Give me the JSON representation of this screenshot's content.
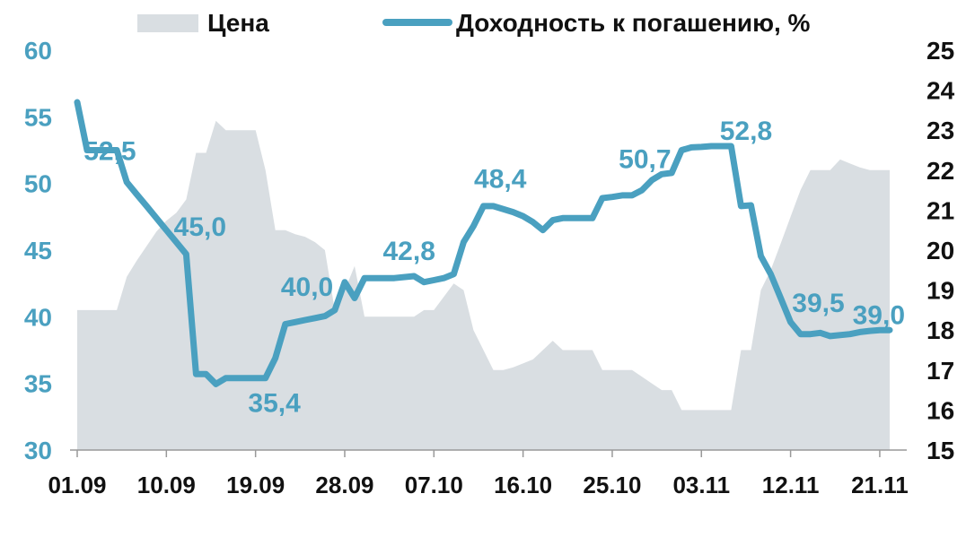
{
  "chart_data": {
    "type": "area+line",
    "legend": {
      "placement": "top",
      "items": [
        {
          "label": "Цена",
          "kind": "area",
          "color": "#d9dee2"
        },
        {
          "label": "Доходность к погашению, %",
          "kind": "line",
          "color": "#4aa0c0"
        }
      ]
    },
    "x_tick_labels": [
      "01.09",
      "10.09",
      "19.09",
      "28.09",
      "07.10",
      "16.10",
      "25.10",
      "03.11",
      "12.11",
      "21.11"
    ],
    "x_tick_positions": [
      0,
      9,
      18,
      27,
      36,
      45,
      54,
      63,
      72,
      81
    ],
    "x_range": [
      0,
      83
    ],
    "left_axis": {
      "range": [
        30,
        60
      ],
      "ticks": [
        30,
        35,
        40,
        45,
        50,
        55,
        60
      ],
      "color": "#4aa0c0"
    },
    "right_axis": {
      "range": [
        15,
        25
      ],
      "ticks": [
        15,
        16,
        17,
        18,
        19,
        20,
        21,
        22,
        23,
        24,
        25
      ],
      "color": "#111111"
    },
    "series": [
      {
        "name": "Цена",
        "type": "area",
        "axis": "left",
        "color": "#d9dee2",
        "points": [
          [
            0,
            40.5
          ],
          [
            4,
            40.5
          ],
          [
            5,
            43
          ],
          [
            6,
            44.2
          ],
          [
            7,
            45.3
          ],
          [
            8,
            46.4
          ],
          [
            9,
            47.2
          ],
          [
            10,
            47.8
          ],
          [
            11,
            48.8
          ],
          [
            12,
            52.3
          ],
          [
            13,
            52.3
          ],
          [
            14,
            54.7
          ],
          [
            15,
            54
          ],
          [
            16,
            54
          ],
          [
            18,
            54
          ],
          [
            19,
            51
          ],
          [
            20,
            46.5
          ],
          [
            21,
            46.5
          ],
          [
            22,
            46.2
          ],
          [
            23,
            46
          ],
          [
            24,
            45.6
          ],
          [
            25,
            45
          ],
          [
            26,
            40.5
          ],
          [
            27,
            42
          ],
          [
            28,
            43.8
          ],
          [
            29,
            40
          ],
          [
            30,
            40
          ],
          [
            33,
            40
          ],
          [
            34,
            40
          ],
          [
            35,
            40.5
          ],
          [
            36,
            40.5
          ],
          [
            38,
            42.5
          ],
          [
            39,
            42
          ],
          [
            40,
            39
          ],
          [
            41,
            37.5
          ],
          [
            42,
            36
          ],
          [
            43,
            36
          ],
          [
            44,
            36.2
          ],
          [
            45,
            36.5
          ],
          [
            46,
            36.8
          ],
          [
            47,
            37.5
          ],
          [
            48,
            38.2
          ],
          [
            49,
            37.5
          ],
          [
            52,
            37.5
          ],
          [
            53,
            36
          ],
          [
            56,
            36
          ],
          [
            57,
            35.5
          ],
          [
            58,
            35
          ],
          [
            59,
            34.5
          ],
          [
            60,
            34.5
          ],
          [
            61,
            33
          ],
          [
            64,
            33
          ],
          [
            65,
            33
          ],
          [
            66,
            33
          ],
          [
            67,
            37.5
          ],
          [
            68,
            37.5
          ],
          [
            69,
            42
          ],
          [
            70,
            43.5
          ],
          [
            71,
            45.5
          ],
          [
            72,
            47.5
          ],
          [
            73,
            49.5
          ],
          [
            74,
            51
          ],
          [
            75,
            51
          ],
          [
            76,
            51
          ],
          [
            77,
            51.8
          ],
          [
            78,
            51.5
          ],
          [
            79,
            51.2
          ],
          [
            80,
            51
          ],
          [
            81,
            51
          ],
          [
            82,
            51
          ]
        ]
      },
      {
        "name": "Доходность к погашению, %",
        "type": "line",
        "axis": "right",
        "color": "#4aa0c0",
        "points": [
          [
            0,
            23.7
          ],
          [
            1,
            22.5
          ],
          [
            2,
            22.5
          ],
          [
            3,
            22.5
          ],
          [
            4,
            22.5
          ],
          [
            5,
            21.7
          ],
          [
            6,
            21.4
          ],
          [
            7,
            21.1
          ],
          [
            8,
            20.8
          ],
          [
            9,
            20.5
          ],
          [
            10,
            20.2
          ],
          [
            11,
            19.9
          ],
          [
            12,
            16.9
          ],
          [
            13,
            16.9
          ],
          [
            14,
            16.65
          ],
          [
            15,
            16.8
          ],
          [
            17,
            16.8
          ],
          [
            18,
            16.8
          ],
          [
            19,
            16.8
          ],
          [
            20,
            17.3
          ],
          [
            21,
            18.15
          ],
          [
            22,
            18.2
          ],
          [
            23,
            18.25
          ],
          [
            24,
            18.3
          ],
          [
            25,
            18.35
          ],
          [
            26,
            18.5
          ],
          [
            27,
            19.2
          ],
          [
            28,
            18.8
          ],
          [
            29,
            19.3
          ],
          [
            30,
            19.3
          ],
          [
            32,
            19.3
          ],
          [
            34,
            19.35
          ],
          [
            35,
            19.2
          ],
          [
            36,
            19.25
          ],
          [
            37,
            19.3
          ],
          [
            38,
            19.4
          ],
          [
            39,
            20.2
          ],
          [
            40,
            20.6
          ],
          [
            41,
            21.1
          ],
          [
            42,
            21.1
          ],
          [
            44,
            20.95
          ],
          [
            45,
            20.85
          ],
          [
            46,
            20.7
          ],
          [
            47,
            20.5
          ],
          [
            48,
            20.75
          ],
          [
            49,
            20.8
          ],
          [
            52,
            20.8
          ],
          [
            53,
            21.3
          ],
          [
            54,
            21.33
          ],
          [
            55,
            21.37
          ],
          [
            56,
            21.37
          ],
          [
            57,
            21.5
          ],
          [
            58,
            21.75
          ],
          [
            59,
            21.9
          ],
          [
            60,
            21.93
          ],
          [
            61,
            22.5
          ],
          [
            62,
            22.57
          ],
          [
            63,
            22.58
          ],
          [
            64,
            22.6
          ],
          [
            65,
            22.6
          ],
          [
            66,
            22.6
          ],
          [
            67,
            21.1
          ],
          [
            68,
            21.12
          ],
          [
            69,
            19.85
          ],
          [
            70,
            19.4
          ],
          [
            71,
            18.8
          ],
          [
            72,
            18.2
          ],
          [
            73,
            17.9
          ],
          [
            74,
            17.9
          ],
          [
            75,
            17.93
          ],
          [
            76,
            17.85
          ],
          [
            78,
            17.9
          ],
          [
            79,
            17.95
          ],
          [
            80,
            17.98
          ],
          [
            81,
            18.0
          ],
          [
            82,
            18.0
          ]
        ]
      }
    ],
    "annotations": [
      {
        "text": "52,5",
        "x": 3.3,
        "y": 22.5
      },
      {
        "text": "45,0",
        "x": 12.4,
        "y": 20.6
      },
      {
        "text": "35,4",
        "x": 19.9,
        "y": 16.2
      },
      {
        "text": "40,0",
        "x": 23.2,
        "y": 19.1
      },
      {
        "text": "42,8",
        "x": 33.5,
        "y": 20.0
      },
      {
        "text": "48,4",
        "x": 42.7,
        "y": 21.8
      },
      {
        "text": "50,7",
        "x": 57.3,
        "y": 22.3
      },
      {
        "text": "52,8",
        "x": 67.5,
        "y": 23.0
      },
      {
        "text": "39,5",
        "x": 74.8,
        "y": 18.7
      },
      {
        "text": "39,0",
        "x": 80.9,
        "y": 18.4
      }
    ],
    "grid": false
  }
}
